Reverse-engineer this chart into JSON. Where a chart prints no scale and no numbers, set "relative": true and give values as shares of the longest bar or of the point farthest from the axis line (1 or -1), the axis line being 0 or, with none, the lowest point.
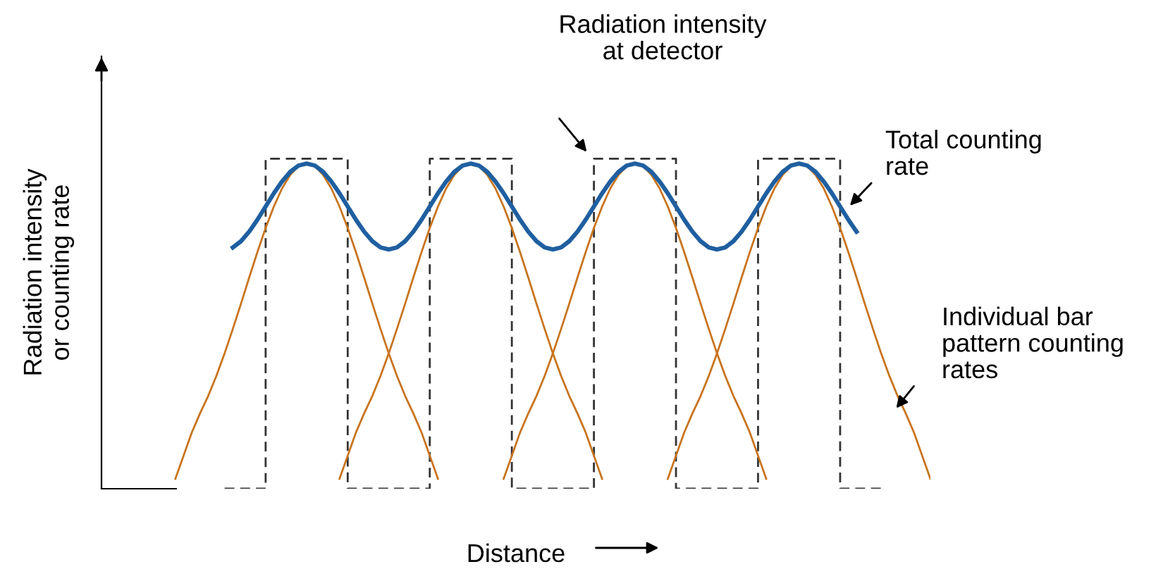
{
  "chart_data": {
    "type": "line",
    "relative": true,
    "tick_labels": false,
    "marker": "none",
    "xlabel": "Distance",
    "ylabel": "Radiation intensity\nor counting rate",
    "annotations": [
      "Radiation intensity\nat detector",
      "Total counting\nrate",
      "Individual bar\npattern counting\nrates"
    ],
    "categories": [
      null,
      null,
      null,
      null,
      null,
      null,
      null,
      null,
      null,
      null,
      null,
      null,
      null,
      null,
      null,
      null,
      null,
      null,
      null,
      null,
      null,
      null,
      null,
      null,
      null,
      null,
      null,
      null,
      null,
      null,
      null,
      null,
      null,
      null,
      null,
      null,
      null,
      null,
      null,
      null,
      null,
      null,
      null,
      null,
      null,
      null,
      null,
      null,
      null,
      null,
      null,
      null,
      null,
      null,
      null,
      null,
      null,
      null,
      null,
      null,
      null,
      null,
      null,
      null,
      null,
      null,
      null,
      null,
      null,
      null,
      null,
      null,
      null,
      null,
      null,
      null,
      null,
      null,
      null,
      null,
      null,
      null,
      null,
      null,
      null,
      null,
      null,
      null,
      null,
      null,
      null,
      null,
      null,
      null,
      null,
      null,
      null,
      null,
      null,
      null,
      null,
      null
    ],
    "series": [
      {
        "type": "step",
        "color": "#333333",
        "line_style": "dashed",
        "values": [
          null,
          null,
          null,
          null,
          null,
          null,
          null,
          null,
          null,
          null,
          null,
          null,
          null,
          null,
          null,
          0,
          0,
          0,
          0,
          0,
          1,
          1,
          1,
          1,
          1,
          1,
          1,
          1,
          1,
          1,
          0,
          0,
          0,
          0,
          0,
          0,
          0,
          0,
          0,
          0,
          1,
          1,
          1,
          1,
          1,
          1,
          1,
          1,
          1,
          1,
          0,
          0,
          0,
          0,
          0,
          0,
          0,
          0,
          0,
          0,
          1,
          1,
          1,
          1,
          1,
          1,
          1,
          1,
          1,
          1,
          0,
          0,
          0,
          0,
          0,
          0,
          0,
          0,
          0,
          0,
          1,
          1,
          1,
          1,
          1,
          1,
          1,
          1,
          1,
          1,
          0,
          0,
          0,
          0,
          0,
          0,
          null,
          null,
          null,
          null,
          null,
          null
        ]
      },
      {
        "color": "#c8741e",
        "line_style": "solid",
        "values": [
          null,
          null,
          null,
          null,
          null,
          null,
          null,
          null,
          null,
          0.03,
          0.1,
          0.17,
          0.228,
          0.281,
          0.342,
          0.41,
          0.484,
          0.561,
          0.64,
          0.717,
          0.79,
          0.855,
          0.91,
          0.951,
          0.977,
          0.985,
          0.977,
          0.951,
          0.91,
          0.855,
          0.79,
          0.717,
          0.64,
          0.561,
          0.484,
          0.41,
          0.342,
          0.281,
          0.228,
          0.17,
          0.1,
          0.03,
          null,
          null,
          null,
          null,
          null,
          null,
          null,
          null,
          null,
          null,
          null,
          null,
          null,
          null,
          null,
          null,
          null,
          null,
          null,
          null,
          null,
          null,
          null,
          null,
          null,
          null,
          null,
          null,
          null,
          null,
          null,
          null,
          null,
          null,
          null,
          null,
          null,
          null,
          null,
          null,
          null,
          null,
          null,
          null,
          null,
          null,
          null,
          null,
          null,
          null,
          null,
          null,
          null,
          null,
          null,
          null,
          null,
          null,
          null,
          null
        ]
      },
      {
        "type": "line",
        "color": "#c8741e",
        "line_style": "solid",
        "values": [
          null,
          null,
          null,
          null,
          null,
          null,
          null,
          null,
          null,
          null,
          null,
          null,
          null,
          null,
          null,
          null,
          null,
          null,
          null,
          null,
          null,
          null,
          null,
          null,
          null,
          null,
          null,
          null,
          null,
          0.03,
          0.1,
          0.17,
          0.228,
          0.281,
          0.342,
          0.41,
          0.484,
          0.561,
          0.64,
          0.717,
          0.79,
          0.855,
          0.91,
          0.951,
          0.977,
          0.985,
          0.977,
          0.951,
          0.91,
          0.855,
          0.79,
          0.717,
          0.64,
          0.561,
          0.484,
          0.41,
          0.342,
          0.281,
          0.228,
          0.17,
          0.1,
          0.03,
          null,
          null,
          null,
          null,
          null,
          null,
          null,
          null,
          null,
          null,
          null,
          null,
          null,
          null,
          null,
          null,
          null,
          null,
          null,
          null,
          null,
          null,
          null,
          null,
          null,
          null,
          null,
          null,
          null,
          null,
          null,
          null,
          null,
          null,
          null,
          null,
          null,
          null,
          null,
          null
        ]
      },
      {
        "type": "line",
        "color": "#c8741e",
        "line_style": "solid",
        "values": [
          null,
          null,
          null,
          null,
          null,
          null,
          null,
          null,
          null,
          null,
          null,
          null,
          null,
          null,
          null,
          null,
          null,
          null,
          null,
          null,
          null,
          null,
          null,
          null,
          null,
          null,
          null,
          null,
          null,
          null,
          null,
          null,
          null,
          null,
          null,
          null,
          null,
          null,
          null,
          null,
          null,
          null,
          null,
          null,
          null,
          null,
          null,
          null,
          null,
          0.03,
          0.1,
          0.17,
          0.228,
          0.281,
          0.342,
          0.41,
          0.484,
          0.561,
          0.64,
          0.717,
          0.79,
          0.855,
          0.91,
          0.951,
          0.977,
          0.985,
          0.977,
          0.951,
          0.91,
          0.855,
          0.79,
          0.717,
          0.64,
          0.561,
          0.484,
          0.41,
          0.342,
          0.281,
          0.228,
          0.17,
          0.1,
          0.03,
          null,
          null,
          null,
          null,
          null,
          null,
          null,
          null,
          null,
          null,
          null,
          null,
          null,
          null,
          null,
          null,
          null,
          null,
          null,
          null
        ]
      },
      {
        "type": "line",
        "color": "#c8741e",
        "line_style": "solid",
        "values": [
          null,
          null,
          null,
          null,
          null,
          null,
          null,
          null,
          null,
          null,
          null,
          null,
          null,
          null,
          null,
          null,
          null,
          null,
          null,
          null,
          null,
          null,
          null,
          null,
          null,
          null,
          null,
          null,
          null,
          null,
          null,
          null,
          null,
          null,
          null,
          null,
          null,
          null,
          null,
          null,
          null,
          null,
          null,
          null,
          null,
          null,
          null,
          null,
          null,
          null,
          null,
          null,
          null,
          null,
          null,
          null,
          null,
          null,
          null,
          null,
          null,
          null,
          null,
          null,
          null,
          null,
          null,
          null,
          null,
          0.03,
          0.1,
          0.17,
          0.228,
          0.281,
          0.342,
          0.41,
          0.484,
          0.561,
          0.64,
          0.717,
          0.79,
          0.855,
          0.91,
          0.951,
          0.977,
          0.985,
          0.977,
          0.951,
          0.91,
          0.855,
          0.79,
          0.717,
          0.64,
          0.561,
          0.484,
          0.41,
          0.342,
          0.281,
          0.228,
          0.17,
          0.1,
          0.03
        ]
      },
      {
        "color": "#1f5fa0",
        "line_style": "solid",
        "values": [
          null,
          null,
          null,
          null,
          null,
          null,
          null,
          null,
          null,
          null,
          null,
          null,
          null,
          null,
          null,
          null,
          0.731,
          0.75,
          0.779,
          0.815,
          0.855,
          0.895,
          0.931,
          0.96,
          0.979,
          0.985,
          0.979,
          0.96,
          0.931,
          0.895,
          0.855,
          0.815,
          0.779,
          0.75,
          0.731,
          0.725,
          0.731,
          0.75,
          0.779,
          0.815,
          0.855,
          0.895,
          0.931,
          0.96,
          0.979,
          0.985,
          0.979,
          0.96,
          0.931,
          0.895,
          0.855,
          0.815,
          0.779,
          0.75,
          0.731,
          0.725,
          0.731,
          0.75,
          0.779,
          0.815,
          0.855,
          0.895,
          0.931,
          0.96,
          0.979,
          0.985,
          0.979,
          0.96,
          0.931,
          0.895,
          0.855,
          0.815,
          0.779,
          0.75,
          0.731,
          0.725,
          0.731,
          0.75,
          0.779,
          0.815,
          0.855,
          0.895,
          0.931,
          0.96,
          0.979,
          0.985,
          0.979,
          0.96,
          0.931,
          0.895,
          0.855,
          0.815,
          0.779,
          null,
          null,
          null,
          null,
          null,
          null,
          null,
          null,
          null
        ]
      }
    ]
  }
}
